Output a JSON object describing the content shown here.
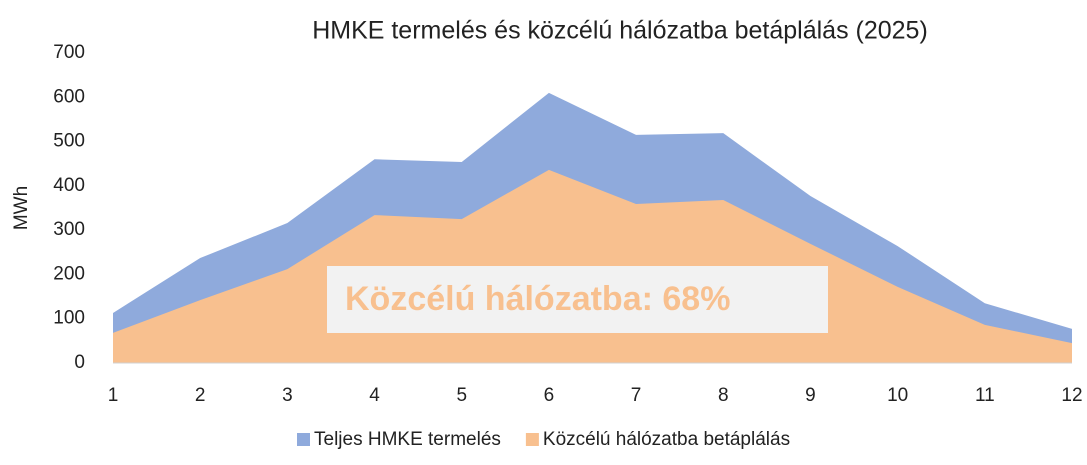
{
  "chart_data": {
    "type": "area",
    "title": "HMKE termelés és közcélú hálózatba betáplálás (2025)",
    "y_label": "MWh",
    "annotation": "Közcélú hálózatba: 68%",
    "x": [
      1,
      2,
      3,
      4,
      5,
      6,
      7,
      8,
      9,
      10,
      11,
      12
    ],
    "xlim": [
      1,
      12
    ],
    "xticks": [
      1,
      2,
      3,
      4,
      5,
      6,
      7,
      8,
      9,
      10,
      11,
      12
    ],
    "ylim": [
      0,
      700
    ],
    "yticks": [
      0,
      100,
      200,
      300,
      400,
      500,
      600,
      700
    ],
    "grid": false,
    "legend": "bottom",
    "series": [
      {
        "name": "Teljes HMKE termelés",
        "color": "#8faadc",
        "values": [
          113,
          237,
          316,
          460,
          454,
          610,
          515,
          519,
          377,
          264,
          135,
          77
        ]
      },
      {
        "name": "Közcélú hálózatba betáplálás",
        "color": "#f8c08f",
        "values": [
          68,
          142,
          212,
          334,
          325,
          436,
          359,
          368,
          269,
          172,
          86,
          45
        ]
      }
    ]
  }
}
